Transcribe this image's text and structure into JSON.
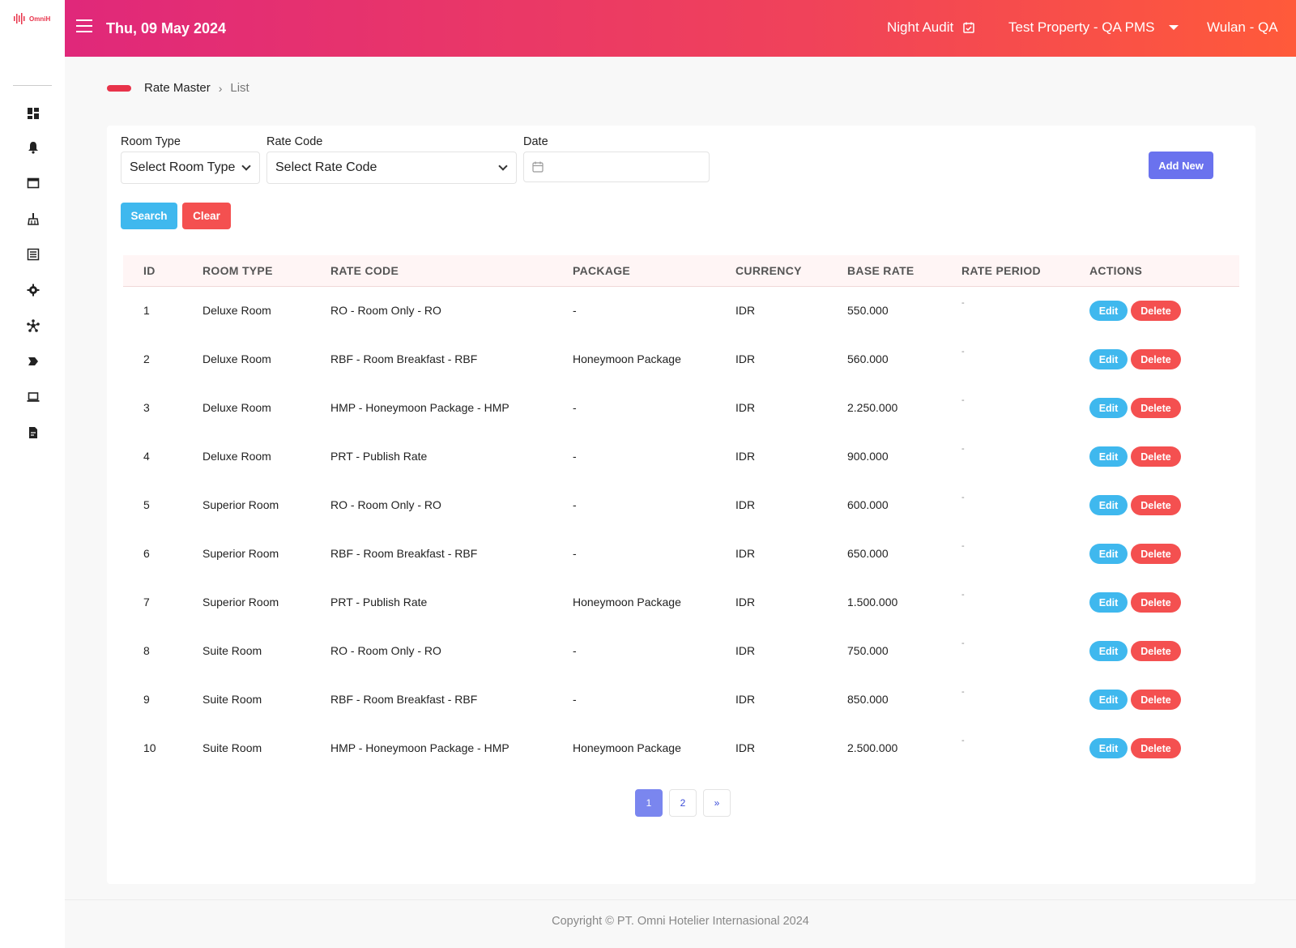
{
  "app": {
    "logo_text": "OmniH",
    "brand_color": "#e8334a"
  },
  "sidebar": {
    "icons": [
      "dashboard-icon",
      "bell-icon",
      "window-icon",
      "broom-icon",
      "list-icon",
      "gear-icon",
      "network-icon",
      "chevron-tag-icon",
      "laptop-icon",
      "report-icon"
    ]
  },
  "header": {
    "date": "Thu, 09 May 2024",
    "night_audit": "Night Audit",
    "property": "Test Property - QA PMS",
    "user": "Wulan - QA"
  },
  "breadcrumb": {
    "root": "Rate Master",
    "separator": "›",
    "current": "List"
  },
  "filters": {
    "room_type_label": "Room Type",
    "room_type_value": "Select Room Type",
    "rate_code_label": "Rate Code",
    "rate_code_value": "Select Rate Code",
    "date_label": "Date",
    "date_value": ""
  },
  "buttons": {
    "add_new": "Add New",
    "search": "Search",
    "clear": "Clear",
    "edit": "Edit",
    "delete": "Delete"
  },
  "table": {
    "columns": [
      "ID",
      "ROOM TYPE",
      "RATE CODE",
      "PACKAGE",
      "CURRENCY",
      "BASE RATE",
      "RATE PERIOD",
      "ACTIONS"
    ],
    "rows": [
      {
        "id": "1",
        "room_type": "Deluxe Room",
        "rate_code": "RO - Room Only - RO",
        "package": "-",
        "currency": "IDR",
        "base_rate": "550.000",
        "rate_period": "-"
      },
      {
        "id": "2",
        "room_type": "Deluxe Room",
        "rate_code": "RBF - Room Breakfast - RBF",
        "package": "Honeymoon Package",
        "currency": "IDR",
        "base_rate": "560.000",
        "rate_period": "-"
      },
      {
        "id": "3",
        "room_type": "Deluxe Room",
        "rate_code": "HMP - Honeymoon Package - HMP",
        "package": "-",
        "currency": "IDR",
        "base_rate": "2.250.000",
        "rate_period": "-"
      },
      {
        "id": "4",
        "room_type": "Deluxe Room",
        "rate_code": "PRT - Publish Rate",
        "package": "-",
        "currency": "IDR",
        "base_rate": "900.000",
        "rate_period": "-"
      },
      {
        "id": "5",
        "room_type": "Superior Room",
        "rate_code": "RO - Room Only - RO",
        "package": "-",
        "currency": "IDR",
        "base_rate": "600.000",
        "rate_period": "-"
      },
      {
        "id": "6",
        "room_type": "Superior Room",
        "rate_code": "RBF - Room Breakfast - RBF",
        "package": "-",
        "currency": "IDR",
        "base_rate": "650.000",
        "rate_period": "-"
      },
      {
        "id": "7",
        "room_type": "Superior Room",
        "rate_code": "PRT - Publish Rate",
        "package": "Honeymoon Package",
        "currency": "IDR",
        "base_rate": "1.500.000",
        "rate_period": "-"
      },
      {
        "id": "8",
        "room_type": "Suite Room",
        "rate_code": "RO - Room Only - RO",
        "package": "-",
        "currency": "IDR",
        "base_rate": "750.000",
        "rate_period": "-"
      },
      {
        "id": "9",
        "room_type": "Suite Room",
        "rate_code": "RBF - Room Breakfast - RBF",
        "package": "-",
        "currency": "IDR",
        "base_rate": "850.000",
        "rate_period": "-"
      },
      {
        "id": "10",
        "room_type": "Suite Room",
        "rate_code": "HMP - Honeymoon Package - HMP",
        "package": "Honeymoon Package",
        "currency": "IDR",
        "base_rate": "2.500.000",
        "rate_period": "-"
      }
    ]
  },
  "pagination": {
    "pages": [
      "1",
      "2"
    ],
    "next": "»",
    "current": "1"
  },
  "footer": {
    "copyright": "Copyright © PT. Omni Hotelier Internasional 2024"
  }
}
